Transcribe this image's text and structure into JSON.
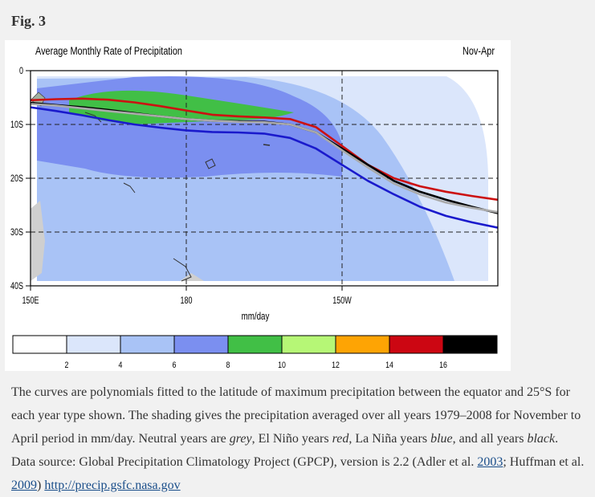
{
  "figure": {
    "label": "Fig. 3"
  },
  "chart_data": {
    "type": "line",
    "title": "Average Monthly Rate of Precipitation",
    "subtitle": "Nov-Apr",
    "xlabel": "",
    "ylabel": "",
    "x_tick_labels": [
      "150E",
      "180",
      "150W"
    ],
    "y_tick_labels": [
      "0",
      "10S",
      "20S",
      "30S",
      "40S"
    ],
    "xlim": [
      150,
      240
    ],
    "ylim": [
      0,
      -40
    ],
    "grid": "dashed at 180, 150W, 10S, 20S, 30S",
    "legend": "none",
    "colorbar": {
      "unit_label": "mm/day",
      "tick_labels": [
        "2",
        "4",
        "6",
        "8",
        "10",
        "12",
        "14",
        "16"
      ],
      "colors": [
        "#ffffff",
        "#dbe6fb",
        "#a9c3f6",
        "#7b8ff0",
        "#41bf46",
        "#b6f776",
        "#fea404",
        "#cc0612",
        "#000000"
      ]
    },
    "series": [
      {
        "color": "#cc1111",
        "x": [
          150,
          155,
          160,
          165,
          170,
          175,
          180,
          185,
          190,
          195,
          200,
          205,
          210,
          215,
          220,
          225,
          230,
          235,
          240
        ],
        "y": [
          -5.5,
          -5.3,
          -5.2,
          -5.4,
          -5.9,
          -6.6,
          -7.4,
          -8.2,
          -8.5,
          -8.7,
          -9.0,
          -10.5,
          -14,
          -17.5,
          -20,
          -21.5,
          -22.5,
          -23.3,
          -24
        ]
      },
      {
        "color": "#000000",
        "x": [
          150,
          155,
          160,
          165,
          170,
          175,
          180,
          185,
          190,
          195,
          200,
          205,
          210,
          215,
          220,
          225,
          230,
          235,
          240
        ],
        "y": [
          -6.0,
          -6.4,
          -6.8,
          -7.3,
          -7.9,
          -8.5,
          -9.0,
          -9.3,
          -9.4,
          -9.5,
          -10.0,
          -11.5,
          -14.5,
          -17.5,
          -20.5,
          -22.5,
          -24.0,
          -25.3,
          -26.5
        ]
      },
      {
        "color": "#aaaaaa",
        "x": [
          150,
          155,
          160,
          165,
          170,
          175,
          180,
          185,
          190,
          195,
          200,
          205,
          210,
          215,
          220,
          225,
          230,
          235,
          240
        ],
        "y": [
          -6.2,
          -6.5,
          -7.0,
          -7.5,
          -8.0,
          -8.5,
          -9.0,
          -9.3,
          -9.5,
          -9.6,
          -10.0,
          -11.5,
          -14.8,
          -18.0,
          -21.0,
          -23.0,
          -24.5,
          -25.5,
          -26.3
        ]
      },
      {
        "color": "#1a1acc",
        "x": [
          150,
          155,
          160,
          165,
          170,
          175,
          180,
          185,
          190,
          195,
          200,
          205,
          210,
          215,
          220,
          225,
          230,
          235,
          240
        ],
        "y": [
          -6.8,
          -7.5,
          -8.3,
          -9.2,
          -10.0,
          -10.6,
          -11.1,
          -11.4,
          -11.5,
          -11.7,
          -12.5,
          -14.5,
          -17.5,
          -20.5,
          -23.0,
          -25.3,
          -27.0,
          -28.2,
          -29.2
        ]
      }
    ]
  },
  "caption": {
    "p1": "The curves are polynomials fitted to the latitude of maximum precipitation between the equator and 25°S for each year type shown. The shading gives the precipitation averaged over all years 1979–2008 for November to April period in mm/day. Neutral years are ",
    "neutral": "grey",
    "p2": ", El Niño years ",
    "elnino": "red",
    "p3": ", La Niña years ",
    "lanina": "blue",
    "p4": ", and all years ",
    "all": "black",
    "p5": ". Data source: Global Precipitation Climatology Project (GPCP), version is 2.2 (Adler et al. ",
    "ref1": "2003",
    "p6": "; Huffman et al. ",
    "ref2": "2009",
    "p7": ") ",
    "url": "http://precip.gsfc.nasa.gov"
  }
}
